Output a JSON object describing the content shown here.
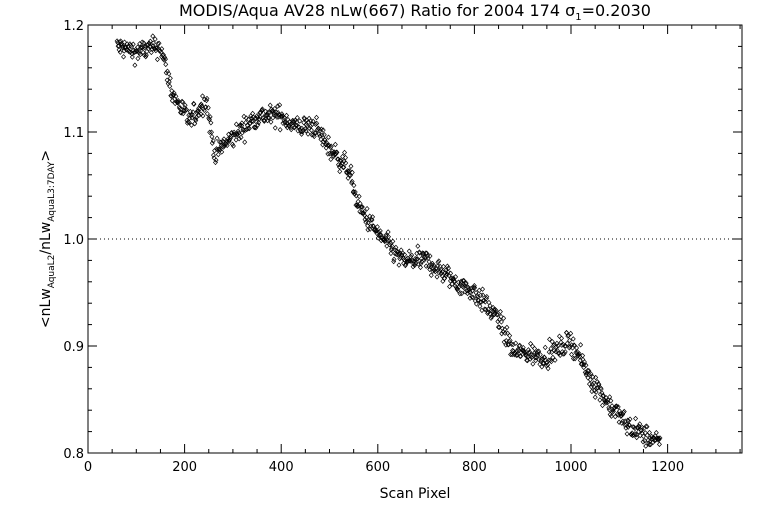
{
  "chart_data": {
    "type": "scatter",
    "title": "MODIS/Aqua AV28 nLw(667) Ratio for 2004 174 σ₁=0.2030",
    "title_parts": {
      "prefix": "MODIS/Aqua AV28 nLw(667) Ratio for 2004 174 ",
      "sigma": "σ",
      "sub": "1",
      "suffix": "=0.2030"
    },
    "xlabel": "Scan Pixel",
    "ylabel": "<nLw_AquaL2/nLw_AquaL3:7DAY>",
    "ylabel_parts": {
      "open": "<nLw",
      "sub1": "AquaL2",
      "mid": "/nLw",
      "sub2": "AquaL3:7DAY",
      "close": ">"
    },
    "xlim": [
      0,
      1354
    ],
    "ylim": [
      0.8,
      1.2
    ],
    "xticks": [
      0,
      200,
      400,
      600,
      800,
      1000,
      1200
    ],
    "yticks": [
      0.8,
      0.9,
      1.0,
      1.1,
      1.2
    ],
    "xtick_labels": [
      "0",
      "200",
      "400",
      "600",
      "800",
      "1000",
      "1200"
    ],
    "ytick_labels": [
      "0.8",
      "0.9",
      "1.0",
      "1.1",
      "1.2"
    ],
    "reference_line": {
      "y": 1.0,
      "style": "dotted"
    },
    "marker": "diamond",
    "grid": false,
    "x_range": [
      60,
      1185
    ],
    "trend": {
      "x": [
        60,
        100,
        150,
        175,
        210,
        245,
        262,
        300,
        350,
        400,
        430,
        470,
        500,
        540,
        560,
        600,
        650,
        700,
        760,
        800,
        850,
        880,
        950,
        1000,
        1040,
        1080,
        1120,
        1160,
        1185
      ],
      "y": [
        1.18,
        1.175,
        1.18,
        1.135,
        1.11,
        1.13,
        1.08,
        1.095,
        1.115,
        1.115,
        1.105,
        1.105,
        1.085,
        1.065,
        1.03,
        1.005,
        0.98,
        0.98,
        0.96,
        0.95,
        0.925,
        0.895,
        0.89,
        0.905,
        0.87,
        0.845,
        0.825,
        0.815,
        0.808
      ]
    },
    "scatter_spread": 0.01
  }
}
